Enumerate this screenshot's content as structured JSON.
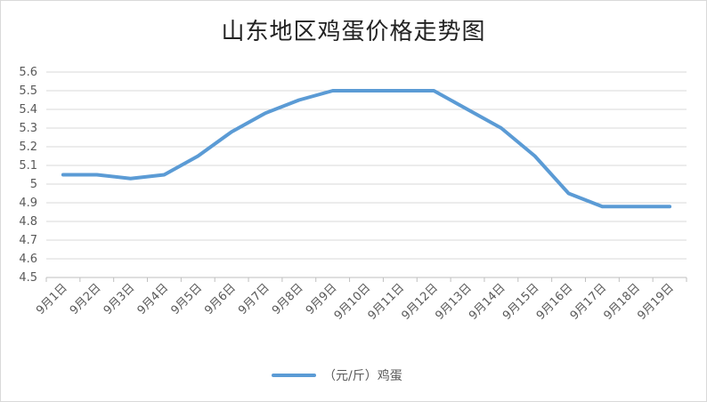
{
  "chart_data": {
    "type": "line",
    "title": "山东地区鸡蛋价格走势图",
    "categories": [
      "9月1日",
      "9月2日",
      "9月3日",
      "9月4日",
      "9月5日",
      "9月6日",
      "9月7日",
      "9月8日",
      "9月9日",
      "9月10日",
      "9月11日",
      "9月12日",
      "9月13日",
      "9月14日",
      "9月15日",
      "9月16日",
      "9月17日",
      "9月18日",
      "9月19日"
    ],
    "series": [
      {
        "name": "（元/斤）鸡蛋",
        "color": "#5B9BD5",
        "values": [
          5.05,
          5.05,
          5.03,
          5.05,
          5.15,
          5.28,
          5.38,
          5.45,
          5.5,
          5.5,
          5.5,
          5.5,
          5.4,
          5.3,
          5.15,
          4.95,
          4.88,
          4.88,
          4.88
        ]
      }
    ],
    "y_ticks": [
      "4.5",
      "4.6",
      "4.7",
      "4.8",
      "4.9",
      "5",
      "5.1",
      "5.2",
      "5.3",
      "5.4",
      "5.5",
      "5.6"
    ],
    "ylim": [
      4.5,
      5.6
    ],
    "grid": true,
    "legend_position": "bottom"
  }
}
